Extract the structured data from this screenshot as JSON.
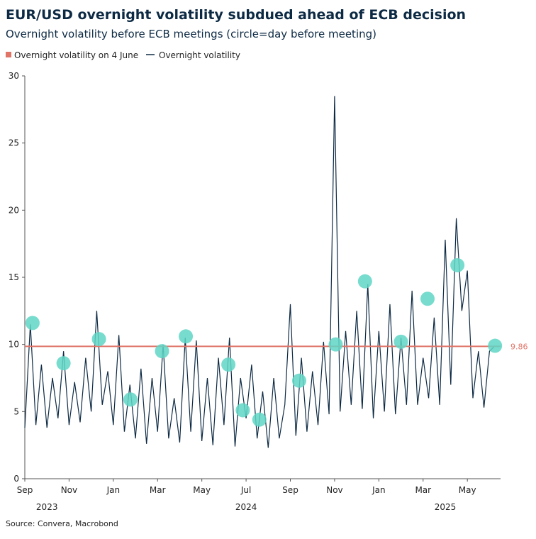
{
  "chart_data": {
    "type": "line",
    "title": "EUR/USD overnight volatility subdued ahead of ECB decision",
    "subtitle": "Overnight volatility before ECB meetings (circle=day before meeting)",
    "source": "Source: Convera, Macrobond",
    "xlim": [
      0,
      86
    ],
    "xticks": [
      {
        "value": 0,
        "label": "Sep"
      },
      {
        "value": 8,
        "label": "Nov"
      },
      {
        "value": 16,
        "label": "Jan"
      },
      {
        "value": 24,
        "label": "Mar"
      },
      {
        "value": 32,
        "label": "May"
      },
      {
        "value": 40,
        "label": "Jul"
      },
      {
        "value": 48,
        "label": "Sep"
      },
      {
        "value": 56,
        "label": "Nov"
      },
      {
        "value": 64,
        "label": "Jan"
      },
      {
        "value": 72,
        "label": "Mar"
      },
      {
        "value": 80,
        "label": "May"
      }
    ],
    "year_ticks": [
      {
        "value": 4,
        "label": "2023"
      },
      {
        "value": 40,
        "label": "2024"
      },
      {
        "value": 76,
        "label": "2025"
      }
    ],
    "ylim": [
      0,
      30
    ],
    "yticks": [
      0,
      5,
      10,
      15,
      20,
      25,
      30
    ],
    "reference": {
      "name": "Overnight volatility on 4 June",
      "value": 9.86,
      "label": "9.86",
      "color": "#e07467"
    },
    "series": [
      {
        "name": "Overnight volatility",
        "color": "#0d2a44",
        "x": [
          0,
          1,
          2,
          3,
          4,
          5,
          6,
          7,
          8,
          9,
          10,
          11,
          12,
          13,
          14,
          15,
          16,
          17,
          18,
          19,
          20,
          21,
          22,
          23,
          24,
          25,
          26,
          27,
          28,
          29,
          30,
          31,
          32,
          33,
          34,
          35,
          36,
          37,
          38,
          39,
          40,
          41,
          42,
          43,
          44,
          45,
          46,
          47,
          48,
          49,
          50,
          51,
          52,
          53,
          54,
          55,
          56,
          57,
          58,
          59,
          60,
          61,
          62,
          63,
          64,
          65,
          66,
          67,
          68,
          69,
          70,
          71,
          72,
          73,
          74,
          75,
          76,
          77,
          78,
          79,
          80,
          81,
          82,
          83,
          84,
          85
        ],
        "values": [
          3.8,
          11.5,
          4,
          8.5,
          3.8,
          7.5,
          4.5,
          9.5,
          4,
          7.2,
          4.2,
          9,
          5,
          12.5,
          5.5,
          8,
          4,
          10.7,
          3.5,
          7,
          3,
          8.2,
          2.6,
          7.5,
          3.5,
          10,
          3,
          6,
          2.7,
          10.5,
          3.5,
          10.3,
          2.8,
          7.5,
          2.5,
          9,
          4,
          10.5,
          2.4,
          7.5,
          4.5,
          8.5,
          3,
          6.5,
          2.3,
          7.5,
          3,
          5.5,
          13,
          3.2,
          9,
          3.5,
          8,
          4,
          10.2,
          4.8,
          28.5,
          5,
          11,
          5.5,
          12.5,
          5.2,
          14.5,
          4.5,
          11,
          5,
          13,
          4.8,
          10.5,
          5.5,
          14,
          5.5,
          9,
          6,
          12,
          5.5,
          17.8,
          7,
          19.4,
          12.5,
          15.5,
          6,
          9.5,
          5.3,
          9.5,
          9.9
        ]
      },
      {
        "name": "Day before meeting",
        "color": "#5fd6c6",
        "x": [
          1.4,
          7,
          13.4,
          19.1,
          24.8,
          29.1,
          36.8,
          39.4,
          42.4,
          49.6,
          56.2,
          61.5,
          68,
          72.8,
          78.2,
          85
        ],
        "values": [
          11.6,
          8.6,
          10.4,
          5.9,
          9.5,
          10.6,
          8.5,
          5.1,
          4.4,
          7.3,
          10,
          14.7,
          10.2,
          13.4,
          15.9,
          9.9
        ]
      }
    ]
  }
}
